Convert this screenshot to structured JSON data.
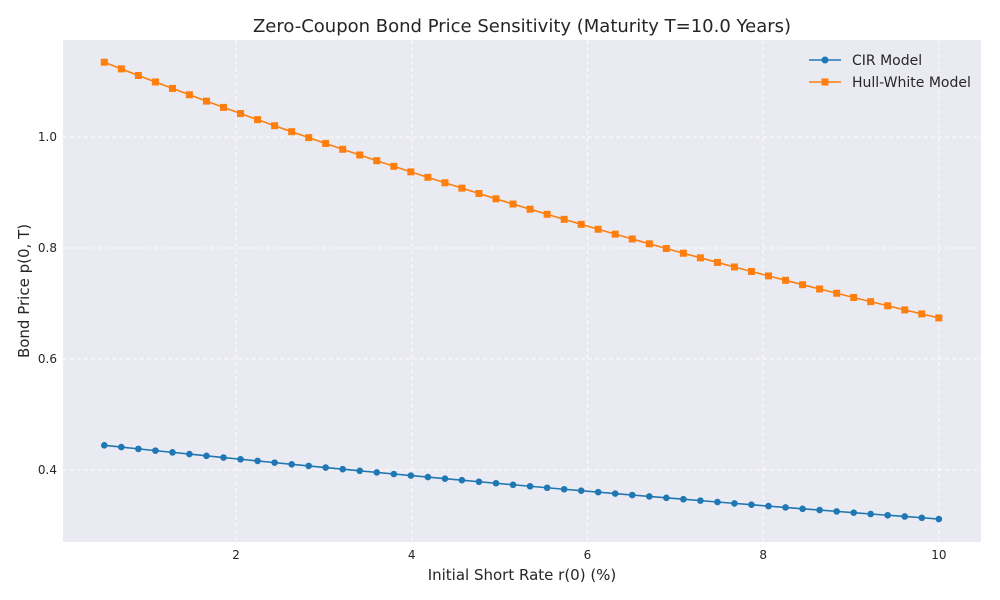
{
  "chart_data": {
    "type": "line",
    "title": "Zero-Coupon Bond Price Sensitivity (Maturity T=10.0 Years)",
    "xlabel": "Initial Short Rate r(0) (%)",
    "ylabel": "Bond Price p(0, T)",
    "xlim": [
      0.03,
      10.48
    ],
    "ylim": [
      0.27,
      1.175
    ],
    "xticks": [
      2,
      4,
      6,
      8,
      10
    ],
    "yticks": [
      0.4,
      0.6,
      0.8,
      1.0
    ],
    "xtick_labels": [
      "2",
      "4",
      "6",
      "8",
      "10"
    ],
    "ytick_labels": [
      "0.4",
      "0.6",
      "0.8",
      "1.0"
    ],
    "grid": true,
    "legend_position": "top-right",
    "x": [
      0.5,
      0.694,
      0.888,
      1.082,
      1.276,
      1.469,
      1.663,
      1.857,
      2.051,
      2.245,
      2.439,
      2.633,
      2.827,
      3.02,
      3.214,
      3.408,
      3.602,
      3.796,
      3.99,
      4.184,
      4.378,
      4.571,
      4.765,
      4.959,
      5.153,
      5.347,
      5.541,
      5.735,
      5.929,
      6.122,
      6.316,
      6.51,
      6.704,
      6.898,
      7.092,
      7.286,
      7.48,
      7.673,
      7.867,
      8.061,
      8.255,
      8.449,
      8.643,
      8.837,
      9.031,
      9.224,
      9.418,
      9.612,
      9.806,
      10.0
    ],
    "series": [
      {
        "name": "CIR Model",
        "color": "#1f77b4",
        "marker": "circle",
        "values": [
          0.4443,
          0.4411,
          0.4379,
          0.4347,
          0.4316,
          0.4285,
          0.4254,
          0.4223,
          0.4192,
          0.4162,
          0.4131,
          0.4101,
          0.4072,
          0.4042,
          0.4013,
          0.3984,
          0.3955,
          0.3926,
          0.3898,
          0.387,
          0.3842,
          0.3814,
          0.3786,
          0.3759,
          0.3732,
          0.3705,
          0.3678,
          0.3651,
          0.3625,
          0.3599,
          0.3573,
          0.3547,
          0.3521,
          0.3496,
          0.3471,
          0.3446,
          0.3421,
          0.3396,
          0.3372,
          0.3347,
          0.3323,
          0.3299,
          0.3276,
          0.3252,
          0.3229,
          0.3205,
          0.3182,
          0.316,
          0.3137,
          0.3114
        ]
      },
      {
        "name": "Hull-White Model",
        "color": "#ff7f0e",
        "marker": "square",
        "values": [
          1.1349,
          1.1229,
          1.111,
          1.0993,
          1.0877,
          1.0762,
          1.0648,
          1.0535,
          1.0424,
          1.0314,
          1.0205,
          1.0097,
          0.999,
          0.9885,
          0.978,
          0.9677,
          0.9574,
          0.9473,
          0.9373,
          0.9274,
          0.9176,
          0.9079,
          0.8983,
          0.8887,
          0.8793,
          0.87,
          0.8608,
          0.8517,
          0.8427,
          0.8338,
          0.825,
          0.8163,
          0.8076,
          0.7991,
          0.7906,
          0.7823,
          0.774,
          0.7658,
          0.7577,
          0.7497,
          0.7418,
          0.7339,
          0.7261,
          0.7184,
          0.7108,
          0.7033,
          0.6959,
          0.6885,
          0.6812,
          0.674
        ]
      }
    ]
  }
}
